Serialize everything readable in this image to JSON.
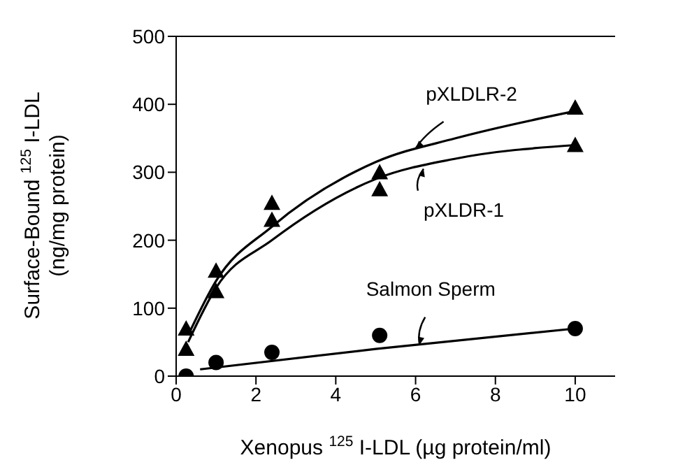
{
  "chart_data": {
    "type": "scatter",
    "xlabel": "Xenopus $^{125}$I-LDL (µg protein/ml)",
    "ylabel": "Surface-Bound $^{125}$I-LDL\n(ng/mg protein)",
    "xlim": [
      0,
      11
    ],
    "xticks": [
      0,
      2,
      4,
      6,
      8,
      10
    ],
    "ylim": [
      0,
      500
    ],
    "yticks": [
      0,
      100,
      200,
      300,
      400,
      500
    ],
    "series": [
      {
        "marker": "triangle",
        "color": "#000000",
        "x": [
          0.25,
          1,
          2.4,
          5.1,
          10
        ],
        "values": [
          70,
          155,
          230,
          300,
          395
        ]
      },
      {
        "marker": "triangle",
        "color": "#000000",
        "x": [
          0.25,
          1,
          2.4,
          5.1,
          10
        ],
        "values": [
          40,
          125,
          255,
          275,
          340
        ]
      },
      {
        "marker": "circle",
        "color": "#000000",
        "x": [
          0.25,
          1,
          2.4,
          5.1,
          10
        ],
        "values": [
          0,
          20,
          35,
          60,
          70
        ]
      },
      {
        "type": "line",
        "marker": "none",
        "color": "#000000",
        "x": [
          0.3,
          1,
          2.4,
          5,
          7,
          10
        ],
        "values": [
          60,
          140,
          220,
          315,
          350,
          390
        ]
      },
      {
        "type": "line",
        "marker": "none",
        "color": "#000000",
        "x": [
          0.3,
          1,
          2.4,
          5,
          7,
          10
        ],
        "values": [
          50,
          130,
          200,
          290,
          320,
          340
        ]
      },
      {
        "type": "line",
        "marker": "none",
        "color": "#000000",
        "x": [
          0.6,
          5,
          10
        ],
        "values": [
          10,
          40,
          70
        ]
      }
    ],
    "annotations": [
      {
        "text": "pXLDLR-2",
        "x": 6,
        "y": 335
      },
      {
        "text": "pXLDR-1",
        "x": 6.2,
        "y": 305
      },
      {
        "text": "Salmon Sperm",
        "x": 6.1,
        "y": 46
      }
    ]
  }
}
